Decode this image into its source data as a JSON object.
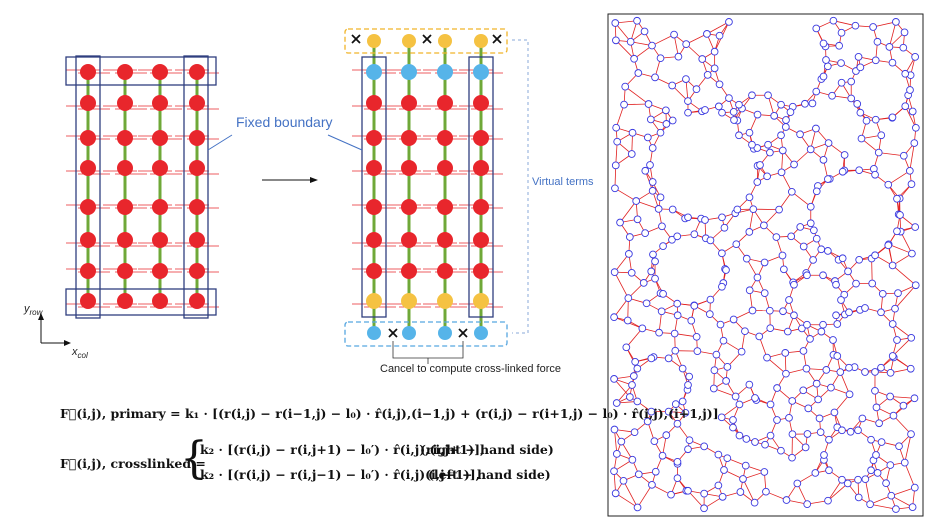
{
  "left_panel": {
    "y_axis_label": "y",
    "y_axis_sub": "row",
    "x_axis_label": "x",
    "x_axis_sub": "col"
  },
  "middle_panel": {
    "fixed_boundary_label": "Fixed boundary",
    "virtual_terms_label": "Virtual terms",
    "cancel_label": "Cancel to compute cross-linked force"
  },
  "equations": {
    "primary_lhs": "F⃗(i,j), primary = ",
    "primary_rhs": "k₁ · [(r(i,j) − r(i−1,j) − l₀) · r̂(i,j),(i−1,j) + (r(i,j) − r(i+1,j) − l₀) · r̂(i,j),(i+1,j)]",
    "cross_lhs": "F⃗(i,j), crosslinked = ",
    "cross_row1": "k₂ · [(r(i,j) − r(i,j+1) − l₀′) · r̂(i,j),(i,j+1)],",
    "cross_row1_tag": "(right − hand side)",
    "cross_row2": "k₂ · [(r(i,j) − r(i,j−1) − l₀′) · r̂(i,j)(i,j−1)],",
    "cross_row2_tag": "(left − hand side)"
  },
  "colors": {
    "node_red": "#e8262c",
    "node_blue": "#56b4e9",
    "node_yellow": "#f5c242",
    "primary_bond": "#6fa838",
    "crosslink": "#e8262c",
    "box_navy": "#2f3f7f",
    "virtual_box_yellow": "#f0b429",
    "virtual_box_blue": "#56a6e0",
    "network_edge": "#e02020",
    "network_node": "#3a3ae0"
  }
}
